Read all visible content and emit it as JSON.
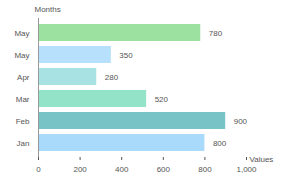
{
  "chart_data": {
    "type": "bar",
    "orientation": "horizontal",
    "x_label": "Values",
    "y_label": "Months",
    "categories": [
      "May",
      "May",
      "Apr",
      "Mar",
      "Feb",
      "Jan"
    ],
    "values": [
      780,
      350,
      280,
      520,
      900,
      800
    ],
    "colors": [
      "#9ce19f",
      "#b6e0fb",
      "#a8e2e2",
      "#93e3c9",
      "#78c3c6",
      "#a9dafb"
    ],
    "xlim": [
      0,
      1000
    ],
    "xticks": [
      0,
      200,
      400,
      600,
      800,
      1000
    ],
    "grid": false,
    "data_labels": true
  }
}
